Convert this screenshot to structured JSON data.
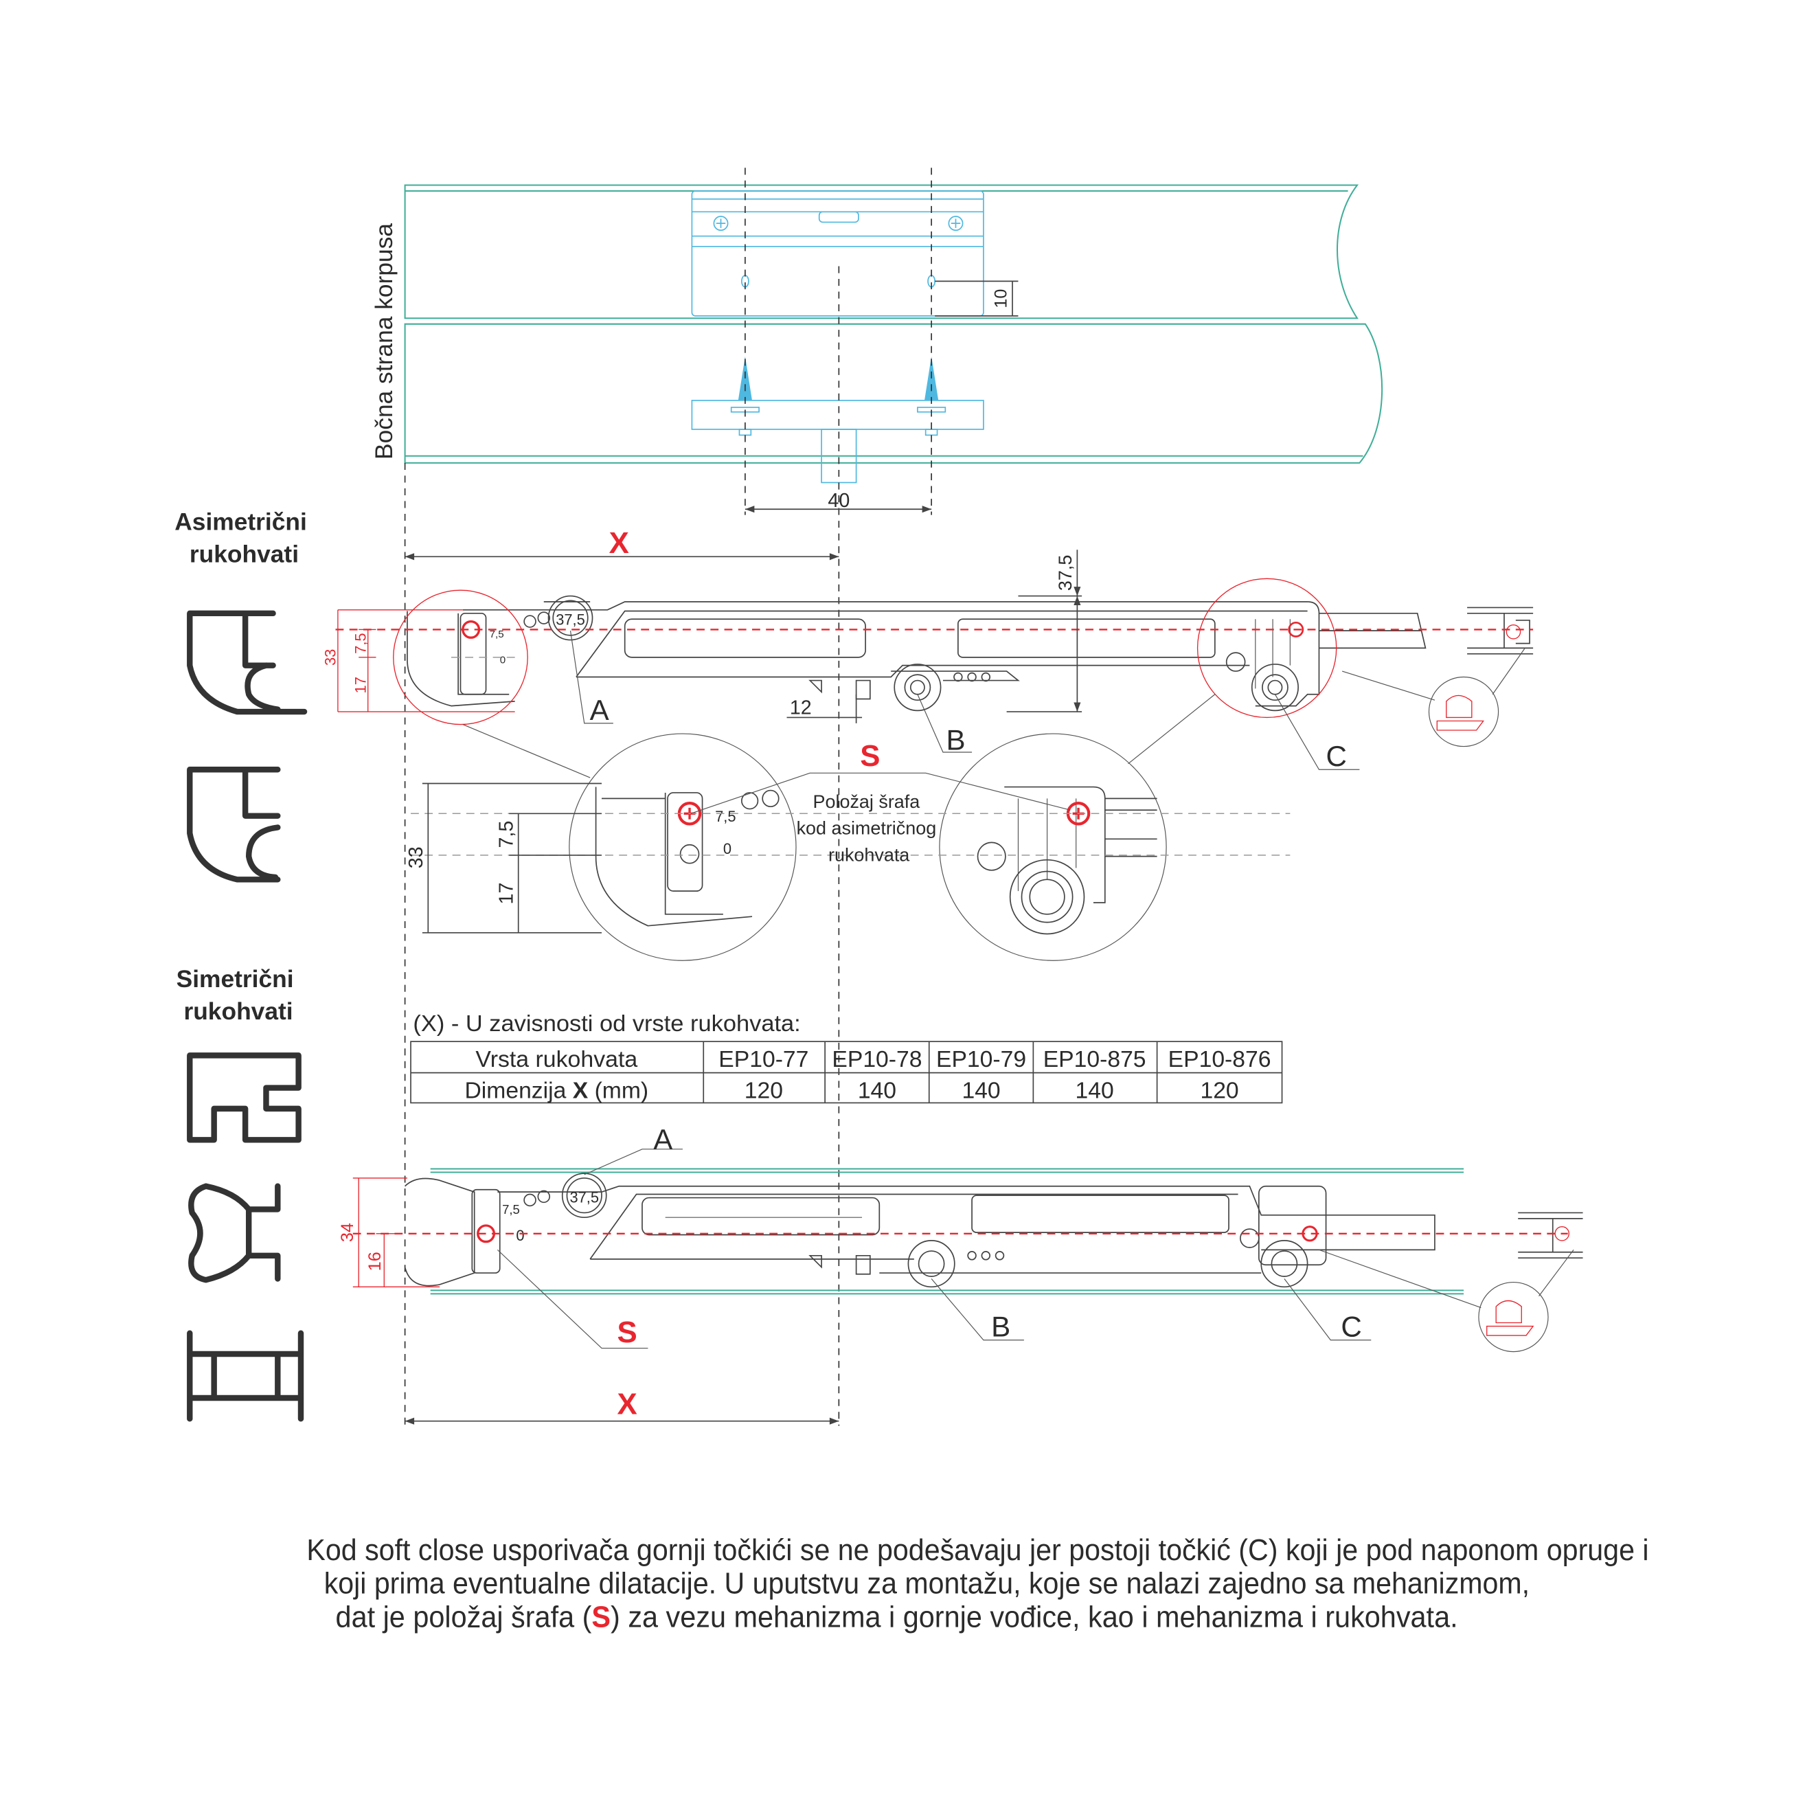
{
  "side_label": "Bočna strana korpusa",
  "headings": {
    "asymmetric": [
      "Asimetrični",
      "rukohvati"
    ],
    "symmetric": [
      "Simetrični",
      "rukohvati"
    ]
  },
  "dimensions": {
    "top_offset": "10",
    "screw_spacing": "40",
    "height_37_5": "37,5",
    "roller_37_5": "37,5",
    "asym_total": "33",
    "asym_upper": "7,5",
    "asym_lower": "17",
    "gap_12": "12",
    "detail_7_5": "7,5",
    "detail_0": "0",
    "sym_total": "34",
    "sym_lower": "16",
    "x_label": "X"
  },
  "labels": {
    "a": "A",
    "b": "B",
    "c": "C",
    "s": "S"
  },
  "detail_note": [
    "Položaj šrafa",
    "kod asimetričnog",
    "rukohvata"
  ],
  "table": {
    "caption": "(X) - U zavisnosti od vrste rukohvata:",
    "row_header_type": "Vrsta rukohvata",
    "row_header_dim_prefix": "Dimenzija ",
    "row_header_dim_x": "X",
    "row_header_dim_unit": " (mm)",
    "columns": [
      "EP10-77",
      "EP10-78",
      "EP10-79",
      "EP10-875",
      "EP10-876"
    ],
    "values": [
      "120",
      "140",
      "140",
      "140",
      "120"
    ]
  },
  "paragraph": {
    "line1": "Kod soft close usporivača gornji točkići se ne podešavaju jer postoji točkić (C) koji je pod naponom opruge i",
    "line2": "koji prima eventualne dilatacije. U uputstvu za montažu, koje se nalazi zajedno sa mehanizmom,",
    "line3_a": "dat je položaj šrafa (",
    "line3_s": "S",
    "line3_b": ") za vezu mehanizma i gornje vođice, kao i mehanizma i rukohvata."
  },
  "colors": {
    "accent_red": "#e8262f",
    "panel_green": "#3fae97",
    "hardware_blue": "#4fb8e0",
    "ink": "#2b2b2b"
  }
}
